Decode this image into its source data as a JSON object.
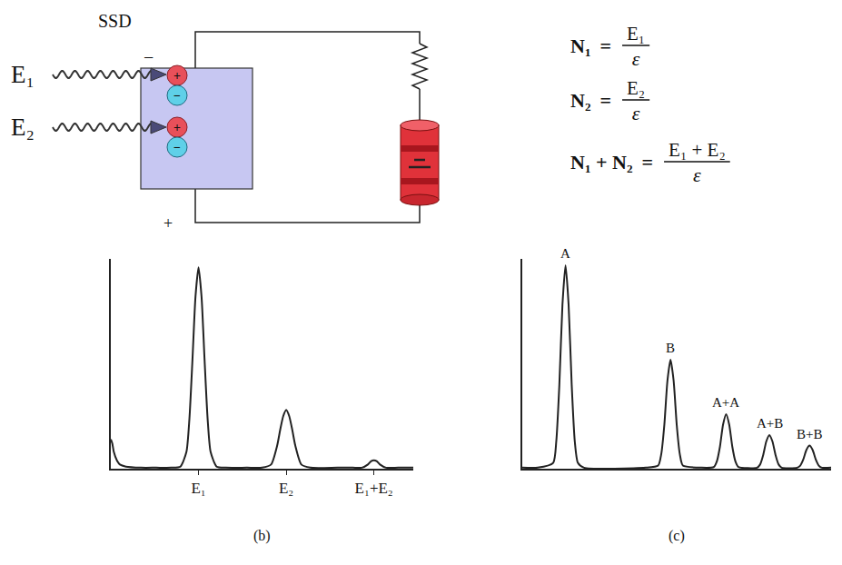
{
  "diagram": {
    "title": "SSD",
    "minus_sign": "−",
    "plus_sign": "+",
    "inputs": [
      "E₁",
      "E₂"
    ],
    "pairs": [
      {
        "hole": "+",
        "electron": "−"
      },
      {
        "hole": "+",
        "electron": "−"
      }
    ]
  },
  "formulas": [
    {
      "left": "N₁",
      "relation": "=",
      "numerator": "E₁",
      "denominator": "ε"
    },
    {
      "left": "N₂",
      "relation": "=",
      "numerator": "E₂",
      "denominator": "ε"
    },
    {
      "left": "N₁ + N₂",
      "relation": "=",
      "numerator": "E₁ + E₂",
      "denominator": "ε"
    }
  ],
  "chart_data": [
    {
      "type": "line",
      "title": "(b)",
      "color": "#222222",
      "x": [
        0,
        0.5,
        1,
        2,
        3,
        5,
        10,
        15,
        20,
        23,
        25,
        26,
        27,
        28,
        29,
        30,
        31,
        32,
        33,
        35,
        38,
        45,
        50,
        53,
        55,
        56,
        57,
        58,
        59,
        60,
        61,
        63,
        66,
        75,
        80,
        83,
        85,
        86,
        87,
        88,
        89,
        91,
        95,
        100
      ],
      "values": [
        14,
        12,
        8,
        4,
        2,
        1,
        0.5,
        0.5,
        0.5,
        1,
        8,
        24,
        52,
        82,
        96,
        82,
        52,
        24,
        8,
        1,
        0.5,
        0.5,
        0.5,
        2,
        11,
        18.5,
        25,
        28,
        25,
        18.5,
        11,
        2,
        0.5,
        0.5,
        0.5,
        0.5,
        2,
        3.5,
        4,
        3.5,
        2,
        0.5,
        0.5,
        0.5
      ],
      "xlim": [
        0,
        100
      ],
      "ylim": [
        0,
        100
      ],
      "xticks": [
        {
          "value": 29,
          "label": "E₁"
        },
        {
          "value": 58,
          "label": "E₂"
        },
        {
          "value": 87,
          "label": "E₁+E₂"
        }
      ],
      "tick_labels": "x",
      "grid": false
    },
    {
      "type": "line",
      "title": "(c)",
      "color": "#222222",
      "x": [
        0,
        5,
        10,
        11,
        12,
        13,
        14,
        15,
        16,
        17,
        18,
        20,
        40,
        44,
        45,
        46,
        47,
        48,
        49,
        50,
        51,
        52,
        58,
        62,
        63,
        64,
        65,
        66,
        67,
        68,
        69,
        70,
        76,
        77,
        78,
        79,
        80,
        81,
        82,
        83,
        84,
        89,
        90,
        91,
        92,
        93,
        94,
        95,
        96,
        97,
        100
      ],
      "values": [
        0.5,
        0.5,
        2.8,
        13,
        40,
        78,
        97,
        78,
        40,
        13,
        2.8,
        0.5,
        0.5,
        1.5,
        7,
        21,
        42,
        52,
        42,
        21,
        7,
        1.5,
        0.5,
        0.8,
        3.5,
        10.5,
        21,
        26,
        21,
        10.5,
        3.5,
        0.8,
        0.5,
        2,
        6.5,
        13,
        16,
        13,
        6.5,
        2,
        0.5,
        0.5,
        1.5,
        4.5,
        9,
        11,
        9,
        4.5,
        1.5,
        0.5,
        0.5
      ],
      "xlim": [
        0,
        100
      ],
      "ylim": [
        0,
        100
      ],
      "annotations": [
        {
          "text": "A",
          "x": 14,
          "y": 97
        },
        {
          "text": "B",
          "x": 48,
          "y": 52
        },
        {
          "text": "A+A",
          "x": 66,
          "y": 26
        },
        {
          "text": "A+B",
          "x": 80,
          "y": 16
        },
        {
          "text": "B+B",
          "x": 93,
          "y": 11
        }
      ],
      "tick_labels": false,
      "grid": false
    }
  ]
}
